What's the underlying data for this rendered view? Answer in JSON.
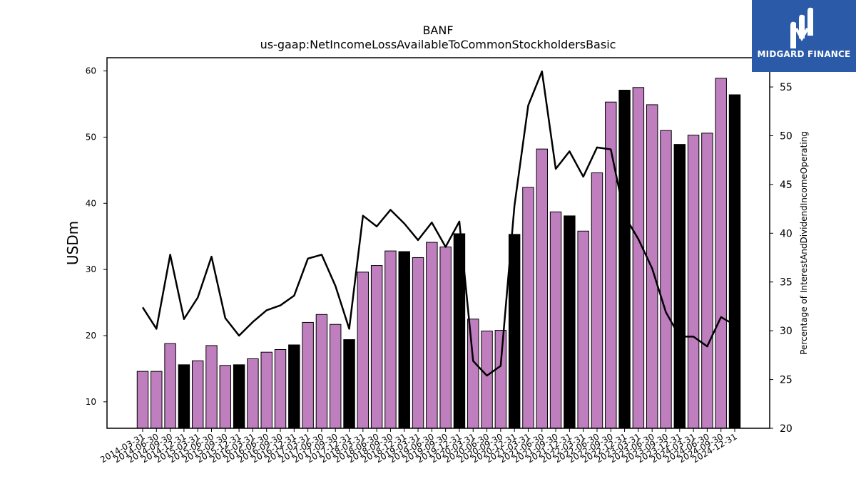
{
  "logo": {
    "text": "MIDGARD FINANCE",
    "icon": "midgard-m-icon",
    "background": "#2b5aa8"
  },
  "chart_data": {
    "type": "bar",
    "title": "BANF",
    "subtitle": "us-gaap:NetIncomeLossAvailableToCommonStockholdersBasic",
    "ylabel": "USDm",
    "ylabel_right": "Percentage of InterestAndDividendIncomeOperating",
    "ylim": [
      6,
      62
    ],
    "ylim_right": [
      20,
      58
    ],
    "yticks": [
      10,
      20,
      30,
      40,
      50,
      60
    ],
    "yticks_right": [
      20,
      25,
      30,
      35,
      40,
      45,
      50,
      55
    ],
    "categories": [
      "2014-03-31",
      "2014-06-30",
      "2014-09-30",
      "2014-12-31",
      "2015-03-31",
      "2015-06-30",
      "2015-09-30",
      "2015-12-31",
      "2016-03-31",
      "2016-06-30",
      "2016-09-30",
      "2016-12-31",
      "2017-03-31",
      "2017-06-30",
      "2017-09-30",
      "2017-12-31",
      "2018-03-31",
      "2018-06-30",
      "2018-09-30",
      "2018-12-31",
      "2019-03-31",
      "2019-06-30",
      "2019-09-30",
      "2019-12-31",
      "2020-03-31",
      "2020-06-30",
      "2020-09-30",
      "2020-12-31",
      "2021-03-31",
      "2021-06-30",
      "2021-09-30",
      "2021-12-31",
      "2022-03-31",
      "2022-06-30",
      "2022-09-30",
      "2022-12-31",
      "2023-03-31",
      "2023-06-30",
      "2023-09-30",
      "2023-12-31",
      "2024-03-31",
      "2024-06-30",
      "2024-09-30",
      "2024-12-31"
    ],
    "series": [
      {
        "values": [
          14.6,
          14.6,
          18.8,
          15.6,
          16.2,
          18.5,
          15.5,
          15.6,
          16.5,
          17.5,
          17.9,
          18.6,
          22.0,
          23.2,
          21.7,
          19.4,
          29.6,
          30.6,
          32.8,
          32.7,
          31.8,
          34.1,
          33.4,
          35.4,
          22.5,
          20.7,
          20.8,
          35.3,
          42.4,
          48.2,
          38.7,
          38.1,
          35.8,
          44.6,
          55.3,
          57.1,
          57.5,
          54.9,
          51.0,
          48.9,
          50.3,
          50.6,
          58.9,
          56.4
        ],
        "colors": [
          "#bf7fbf",
          "#bf7fbf",
          "#bf7fbf",
          "#000000",
          "#bf7fbf",
          "#bf7fbf",
          "#bf7fbf",
          "#000000",
          "#bf7fbf",
          "#bf7fbf",
          "#bf7fbf",
          "#000000",
          "#bf7fbf",
          "#bf7fbf",
          "#bf7fbf",
          "#000000",
          "#bf7fbf",
          "#bf7fbf",
          "#bf7fbf",
          "#000000",
          "#bf7fbf",
          "#bf7fbf",
          "#bf7fbf",
          "#000000",
          "#bf7fbf",
          "#bf7fbf",
          "#bf7fbf",
          "#000000",
          "#bf7fbf",
          "#bf7fbf",
          "#bf7fbf",
          "#000000",
          "#bf7fbf",
          "#bf7fbf",
          "#bf7fbf",
          "#000000",
          "#bf7fbf",
          "#bf7fbf",
          "#bf7fbf",
          "#000000",
          "#bf7fbf",
          "#bf7fbf",
          "#bf7fbf",
          "#000000"
        ]
      },
      {
        "type": "line",
        "axis": "right",
        "color": "#000000",
        "values": [
          32.4,
          30.2,
          37.8,
          31.2,
          33.4,
          37.6,
          31.3,
          29.5,
          30.9,
          32.1,
          32.6,
          33.6,
          37.4,
          37.8,
          34.6,
          30.2,
          41.8,
          40.7,
          42.4,
          41.0,
          39.3,
          41.1,
          38.6,
          41.2,
          26.9,
          25.4,
          26.4,
          42.8,
          53.1,
          56.6,
          46.6,
          48.4,
          45.8,
          48.8,
          48.6,
          41.8,
          39.4,
          36.4,
          31.9,
          29.4,
          29.4,
          28.4,
          31.4,
          30.6
        ]
      }
    ],
    "bar_edge_color": "#000000",
    "grid": false
  }
}
